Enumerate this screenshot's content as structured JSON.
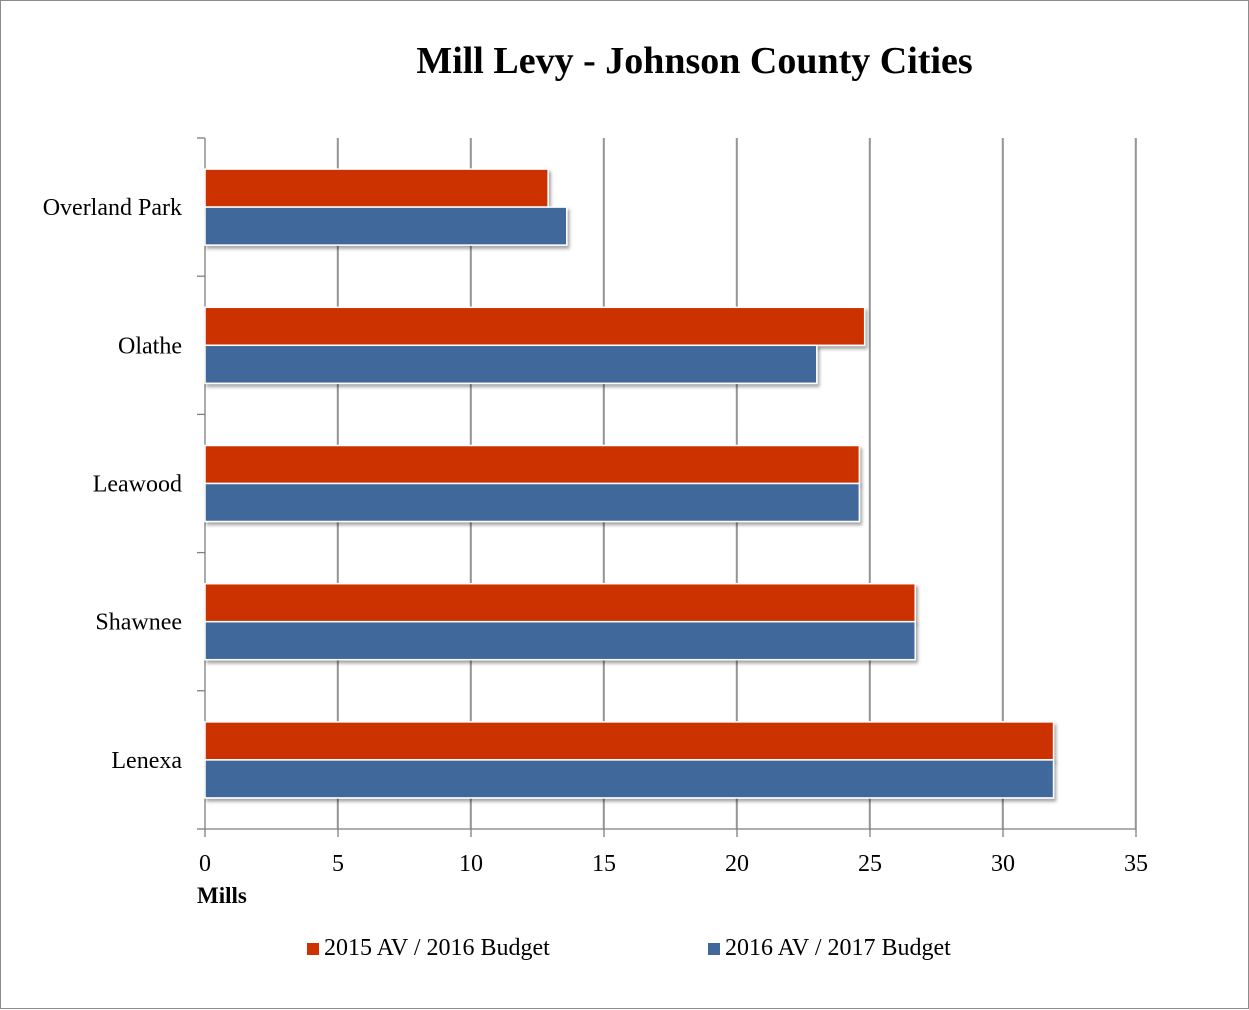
{
  "chart_data": {
    "type": "bar",
    "orientation": "horizontal",
    "title": "Mill Levy - Johnson County Cities",
    "xlabel": "Mills",
    "ylabel": "",
    "xlim": [
      0,
      35
    ],
    "xticks": [
      0,
      5,
      10,
      15,
      20,
      25,
      30,
      35
    ],
    "categories": [
      "Overland Park",
      "Olathe",
      "Leawood",
      "Shawnee",
      "Lenexa"
    ],
    "series": [
      {
        "name": "2015 AV / 2016 Budget",
        "color": "#cc3300",
        "values": [
          12.9,
          24.8,
          24.6,
          26.7,
          31.9
        ]
      },
      {
        "name": "2016 AV / 2017 Budget",
        "color": "#41689a",
        "values": [
          13.6,
          23.0,
          24.6,
          26.7,
          31.9
        ]
      }
    ],
    "grid": true,
    "legend_position": "bottom"
  }
}
